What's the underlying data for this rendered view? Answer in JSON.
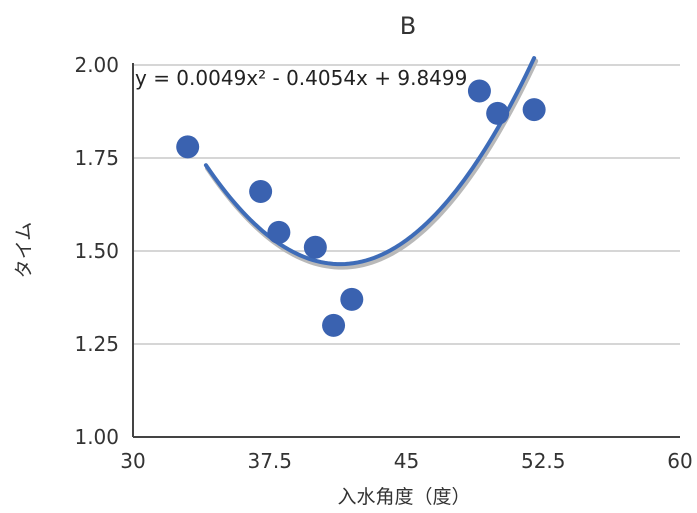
{
  "chart_data": {
    "type": "scatter",
    "title": "B",
    "xlabel": "入水角度（度）",
    "ylabel": "タイム",
    "xlim": [
      30,
      60
    ],
    "ylim": [
      1.0,
      2.0
    ],
    "x_ticks": [
      "30",
      "37.5",
      "45",
      "52.5",
      "60"
    ],
    "y_ticks": [
      "1.00",
      "1.25",
      "1.50",
      "1.75",
      "2.00"
    ],
    "grid": "horizontal",
    "colors": {
      "points": "#3a62b0",
      "trendline": "#3e6cb8",
      "grid": "#c8c8c8",
      "axis": "#444444"
    },
    "points": [
      {
        "x": 33.0,
        "y": 1.78
      },
      {
        "x": 37.0,
        "y": 1.66
      },
      {
        "x": 38.0,
        "y": 1.55
      },
      {
        "x": 40.0,
        "y": 1.51
      },
      {
        "x": 41.0,
        "y": 1.3
      },
      {
        "x": 42.0,
        "y": 1.37
      },
      {
        "x": 49.0,
        "y": 1.93
      },
      {
        "x": 50.0,
        "y": 1.87
      },
      {
        "x": 52.0,
        "y": 1.88
      }
    ],
    "trendline": {
      "type": "polynomial",
      "equation": "y = 0.0049x² - 0.4054x + 9.8499",
      "coefficients": [
        0.0049,
        -0.4054,
        9.8499
      ],
      "x_range": [
        34.0,
        52.0
      ]
    }
  }
}
